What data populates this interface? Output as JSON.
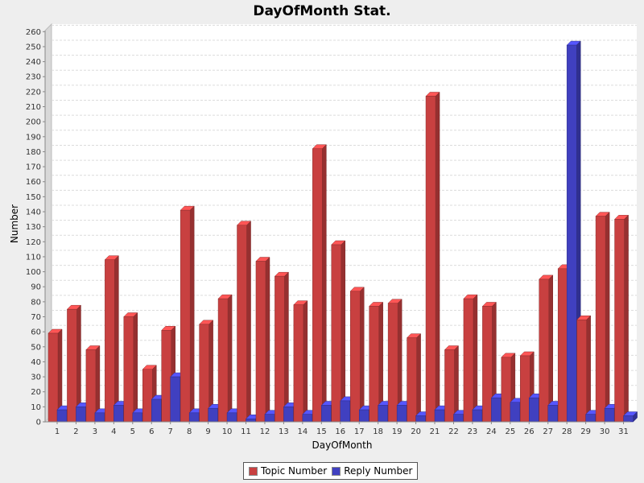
{
  "chart_data": {
    "type": "bar",
    "title": "DayOfMonth Stat.",
    "xlabel": "DayOfMonth",
    "ylabel": "Number",
    "ylim": [
      0,
      265
    ],
    "yticks": [
      0,
      10,
      20,
      30,
      40,
      50,
      60,
      70,
      80,
      90,
      100,
      110,
      120,
      130,
      140,
      150,
      160,
      170,
      180,
      190,
      200,
      210,
      220,
      230,
      240,
      250,
      260
    ],
    "grid": true,
    "legend_position": "bottom",
    "categories": [
      "1",
      "2",
      "3",
      "4",
      "5",
      "6",
      "7",
      "8",
      "9",
      "10",
      "11",
      "12",
      "13",
      "14",
      "15",
      "16",
      "17",
      "18",
      "19",
      "20",
      "21",
      "22",
      "23",
      "24",
      "25",
      "26",
      "27",
      "28",
      "29",
      "30",
      "31"
    ],
    "series": [
      {
        "name": "Topic Number",
        "color": "#c84040",
        "values": [
          59,
          75,
          48,
          108,
          70,
          35,
          61,
          141,
          65,
          82,
          131,
          107,
          97,
          78,
          182,
          118,
          87,
          77,
          79,
          56,
          217,
          48,
          82,
          77,
          43,
          44,
          95,
          102,
          68,
          137,
          135
        ]
      },
      {
        "name": "Reply Number",
        "color": "#4040c0",
        "values": [
          8,
          10,
          6,
          11,
          6,
          15,
          30,
          6,
          9,
          6,
          2,
          5,
          10,
          5,
          11,
          14,
          8,
          11,
          11,
          4,
          8,
          5,
          8,
          16,
          13,
          16,
          11,
          251,
          5,
          9,
          4
        ]
      }
    ]
  }
}
